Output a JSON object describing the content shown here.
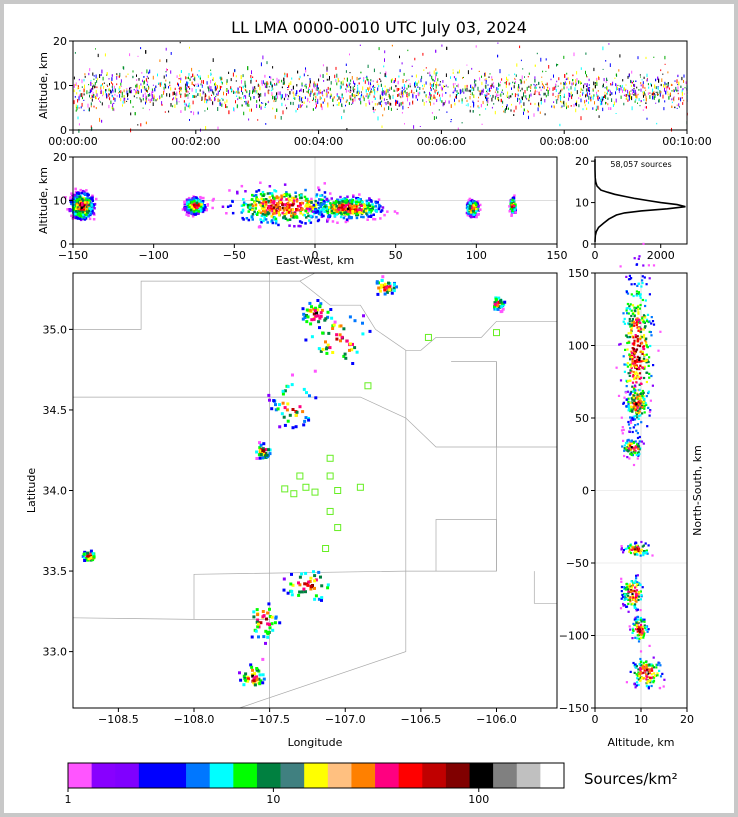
{
  "title": "LL LMA 0000-0010 UTC July 03, 2024",
  "colorbar_label": "Sources/km²",
  "chart_data": [
    {
      "id": "time_height",
      "type": "scatter",
      "ylabel": "Altitude, km",
      "ylim": [
        0,
        20
      ],
      "ytick_labels": [
        "0",
        "10",
        "20"
      ],
      "xlim_minutes": [
        0,
        10
      ],
      "xtick_labels": [
        "00:00:00",
        "00:02:00",
        "00:04:00",
        "00:06:00",
        "00:08:00",
        "00:10:00"
      ],
      "core_altitude_km": [
        5,
        13
      ]
    },
    {
      "id": "ew_altitude",
      "type": "heatmap",
      "xlabel": "East-West, km",
      "ylabel": "Altitude, km",
      "xlim": [
        -150,
        150
      ],
      "ylim": [
        0,
        20
      ],
      "xtick_labels": [
        "−150",
        "−100",
        "−50",
        "0",
        "50",
        "100",
        "150"
      ],
      "ytick_labels": [
        "0",
        "10",
        "20"
      ],
      "clusters": [
        {
          "x": -145,
          "z": 9,
          "w": 12,
          "h": 5
        },
        {
          "x": -20,
          "z": 9,
          "w": 55,
          "h": 7
        },
        {
          "x": 20,
          "z": 8.5,
          "w": 35,
          "h": 4
        },
        {
          "x": -75,
          "z": 9,
          "w": 10,
          "h": 3
        },
        {
          "x": 97,
          "z": 8.5,
          "w": 6,
          "h": 3
        },
        {
          "x": 122,
          "z": 9,
          "w": 3,
          "h": 3
        }
      ]
    },
    {
      "id": "altitude_histogram",
      "type": "line",
      "annotation": "58,057 sources",
      "xlim": [
        0,
        2800
      ],
      "ylim": [
        0,
        21
      ],
      "xtick_labels": [
        "0",
        "2000"
      ],
      "ytick_labels": [
        "0",
        "10",
        "20"
      ],
      "profile": [
        [
          0.5,
          0
        ],
        [
          2,
          10
        ],
        [
          3,
          40
        ],
        [
          4,
          110
        ],
        [
          5,
          260
        ],
        [
          6,
          420
        ],
        [
          7,
          650
        ],
        [
          7.5,
          900
        ],
        [
          8,
          1400
        ],
        [
          8.5,
          2200
        ],
        [
          9,
          2750
        ],
        [
          9.5,
          2500
        ],
        [
          10,
          2000
        ],
        [
          10.5,
          1600
        ],
        [
          11,
          1200
        ],
        [
          11.5,
          900
        ],
        [
          12,
          600
        ],
        [
          12.5,
          380
        ],
        [
          13,
          180
        ],
        [
          14,
          60
        ],
        [
          15,
          20
        ],
        [
          16,
          5
        ],
        [
          18,
          1
        ],
        [
          20.5,
          0
        ]
      ]
    },
    {
      "id": "plan_view",
      "type": "heatmap",
      "xlabel": "Longitude",
      "ylabel": "Latitude",
      "xlim": [
        -108.8,
        -105.6
      ],
      "ylim": [
        32.65,
        35.35
      ],
      "xtick_labels": [
        "−108.5",
        "−108.0",
        "−107.5",
        "−107.0",
        "−106.5",
        "−106.0"
      ],
      "ytick_labels": [
        "33.0",
        "33.5",
        "34.0",
        "34.5",
        "35.0"
      ],
      "clusters": [
        {
          "lon": -107.35,
          "lat": 34.55,
          "w": 0.18,
          "h": 0.18
        },
        {
          "lon": -107.05,
          "lat": 34.95,
          "w": 0.25,
          "h": 0.2
        },
        {
          "lon": -106.75,
          "lat": 35.27,
          "w": 0.1,
          "h": 0.06
        },
        {
          "lon": -107.2,
          "lat": 35.1,
          "w": 0.12,
          "h": 0.1
        },
        {
          "lon": -107.55,
          "lat": 34.25,
          "w": 0.06,
          "h": 0.06
        },
        {
          "lon": -107.25,
          "lat": 33.42,
          "w": 0.2,
          "h": 0.12
        },
        {
          "lon": -107.55,
          "lat": 33.2,
          "w": 0.12,
          "h": 0.15
        },
        {
          "lon": -107.62,
          "lat": 32.85,
          "w": 0.1,
          "h": 0.1
        },
        {
          "lon": -108.7,
          "lat": 33.6,
          "w": 0.06,
          "h": 0.04
        },
        {
          "lon": -106.0,
          "lat": 35.17,
          "w": 0.05,
          "h": 0.05
        }
      ],
      "stations": [
        [
          -106.45,
          34.95
        ],
        [
          -106.0,
          34.98
        ],
        [
          -106.85,
          34.65
        ],
        [
          -107.1,
          34.2
        ],
        [
          -107.1,
          34.09
        ],
        [
          -107.3,
          34.09
        ],
        [
          -107.4,
          34.01
        ],
        [
          -107.26,
          34.02
        ],
        [
          -107.34,
          33.98
        ],
        [
          -107.2,
          33.99
        ],
        [
          -107.05,
          34.0
        ],
        [
          -106.9,
          34.02
        ],
        [
          -107.1,
          33.87
        ],
        [
          -107.05,
          33.77
        ],
        [
          -107.13,
          33.64
        ]
      ]
    },
    {
      "id": "ns_altitude",
      "type": "heatmap",
      "xlabel": "Altitude, km",
      "ylabel": "North-South, km",
      "xlim": [
        0,
        20
      ],
      "ylim": [
        -150,
        150
      ],
      "xtick_labels": [
        "0",
        "10",
        "20"
      ],
      "ytick_labels": [
        "−150",
        "−100",
        "−50",
        "0",
        "50",
        "100",
        "150"
      ],
      "clusters": [
        {
          "z": 9,
          "y": 95,
          "w": 6,
          "h": 95
        },
        {
          "z": 9,
          "y": 60,
          "w": 4,
          "h": 20
        },
        {
          "z": 8,
          "y": 30,
          "w": 4,
          "h": 10
        },
        {
          "z": 9,
          "y": -40,
          "w": 5,
          "h": 8
        },
        {
          "z": 8,
          "y": -70,
          "w": 4,
          "h": 20
        },
        {
          "z": 9.5,
          "y": -95,
          "w": 3,
          "h": 15
        },
        {
          "z": 11,
          "y": -125,
          "w": 6,
          "h": 18
        }
      ]
    }
  ],
  "colorbar": {
    "colors": [
      "#ff55ff",
      "#8800ff",
      "#8000ff",
      "#0000ff",
      "#0000ff",
      "#0077ff",
      "#00ffff",
      "#00ff00",
      "#008040",
      "#408080",
      "#ffff00",
      "#ffc080",
      "#ff8000",
      "#ff0080",
      "#ff0000",
      "#c00000",
      "#800000",
      "#000000",
      "#808080",
      "#c0c0c0",
      "#ffffff"
    ],
    "tick_labels": [
      "1",
      "10",
      "100"
    ],
    "tick_values": [
      1,
      10,
      100
    ],
    "range": [
      1,
      260
    ]
  },
  "heat_colors": [
    "#ff55ff",
    "#8800ff",
    "#0000ff",
    "#0077ff",
    "#00ffff",
    "#00ff00",
    "#008040",
    "#ffff00",
    "#ff8000",
    "#ff0080",
    "#ff0000",
    "#c00000",
    "#800000",
    "#000000",
    "#c0c0c0",
    "#ffffff"
  ],
  "station_color": "#66ee22"
}
